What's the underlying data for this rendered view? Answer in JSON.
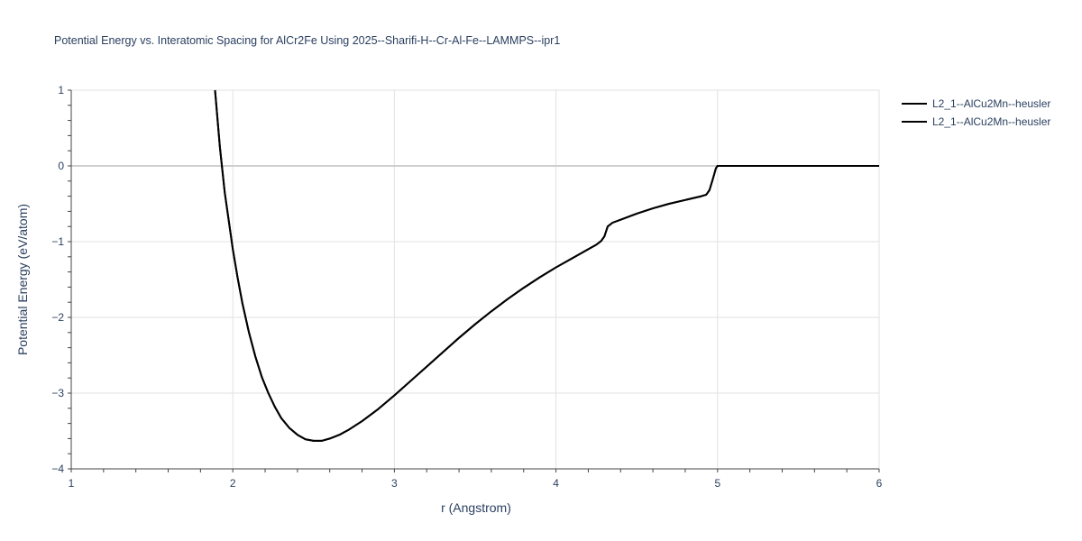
{
  "chart_data": {
    "type": "line",
    "title": "Potential Energy vs. Interatomic Spacing for AlCr2Fe Using 2025--Sharifi-H--Cr-Al-Fe--LAMMPS--ipr1",
    "xlabel": "r (Angstrom)",
    "ylabel": "Potential Energy (eV/atom)",
    "xlim": [
      1,
      6
    ],
    "ylim": [
      -4,
      1
    ],
    "x_ticks": [
      "1",
      "2",
      "3",
      "4",
      "5",
      "6"
    ],
    "y_ticks": [
      "1",
      "0",
      "−1",
      "−2",
      "−3",
      "−4"
    ],
    "grid": true,
    "legend_position": "top-right",
    "series": [
      {
        "name": "L2_1--AlCu2Mn--heusler",
        "color": "#000000",
        "x": [
          1.89,
          1.92,
          1.95,
          1.98,
          2.0,
          2.03,
          2.06,
          2.1,
          2.14,
          2.18,
          2.22,
          2.26,
          2.3,
          2.35,
          2.4,
          2.45,
          2.5,
          2.55,
          2.6,
          2.66,
          2.72,
          2.8,
          2.9,
          3.0,
          3.1,
          3.2,
          3.3,
          3.4,
          3.5,
          3.6,
          3.7,
          3.8,
          3.9,
          4.0,
          4.1,
          4.2,
          4.25,
          4.28,
          4.3,
          4.32,
          4.35,
          4.4,
          4.5,
          4.6,
          4.7,
          4.8,
          4.9,
          4.93,
          4.95,
          4.97,
          4.99,
          5.0,
          5.2,
          5.5,
          5.8,
          6.0
        ],
        "y": [
          1.0,
          0.25,
          -0.35,
          -0.8,
          -1.1,
          -1.48,
          -1.82,
          -2.2,
          -2.52,
          -2.79,
          -3.0,
          -3.18,
          -3.33,
          -3.46,
          -3.55,
          -3.61,
          -3.63,
          -3.63,
          -3.6,
          -3.55,
          -3.48,
          -3.37,
          -3.21,
          -3.03,
          -2.84,
          -2.65,
          -2.46,
          -2.27,
          -2.09,
          -1.92,
          -1.76,
          -1.61,
          -1.47,
          -1.34,
          -1.22,
          -1.1,
          -1.04,
          -0.99,
          -0.93,
          -0.8,
          -0.75,
          -0.71,
          -0.63,
          -0.56,
          -0.5,
          -0.45,
          -0.4,
          -0.38,
          -0.32,
          -0.18,
          -0.03,
          0.0,
          0.0,
          0.0,
          0.0,
          0.0
        ]
      },
      {
        "name": "L2_1--AlCu2Mn--heusler",
        "color": "#000000",
        "x": [
          1.89,
          1.92,
          1.95,
          1.98,
          2.0,
          2.03,
          2.06,
          2.1,
          2.14,
          2.18,
          2.22,
          2.26,
          2.3,
          2.35,
          2.4,
          2.45,
          2.5,
          2.55,
          2.6,
          2.66,
          2.72,
          2.8,
          2.9,
          3.0,
          3.1,
          3.2,
          3.3,
          3.4,
          3.5,
          3.6,
          3.7,
          3.8,
          3.9,
          4.0,
          4.1,
          4.2,
          4.25,
          4.28,
          4.3,
          4.32,
          4.35,
          4.4,
          4.5,
          4.6,
          4.7,
          4.8,
          4.9,
          4.93,
          4.95,
          4.97,
          4.99,
          5.0,
          5.2,
          5.5,
          5.8,
          6.0
        ],
        "y": [
          1.0,
          0.25,
          -0.35,
          -0.8,
          -1.1,
          -1.48,
          -1.82,
          -2.2,
          -2.52,
          -2.79,
          -3.0,
          -3.18,
          -3.33,
          -3.46,
          -3.55,
          -3.61,
          -3.63,
          -3.63,
          -3.6,
          -3.55,
          -3.48,
          -3.37,
          -3.21,
          -3.03,
          -2.84,
          -2.65,
          -2.46,
          -2.27,
          -2.09,
          -1.92,
          -1.76,
          -1.61,
          -1.47,
          -1.34,
          -1.22,
          -1.1,
          -1.04,
          -0.99,
          -0.93,
          -0.8,
          -0.75,
          -0.71,
          -0.63,
          -0.56,
          -0.5,
          -0.45,
          -0.4,
          -0.38,
          -0.32,
          -0.18,
          -0.03,
          0.0,
          0.0,
          0.0,
          0.0,
          0.0
        ]
      }
    ]
  }
}
